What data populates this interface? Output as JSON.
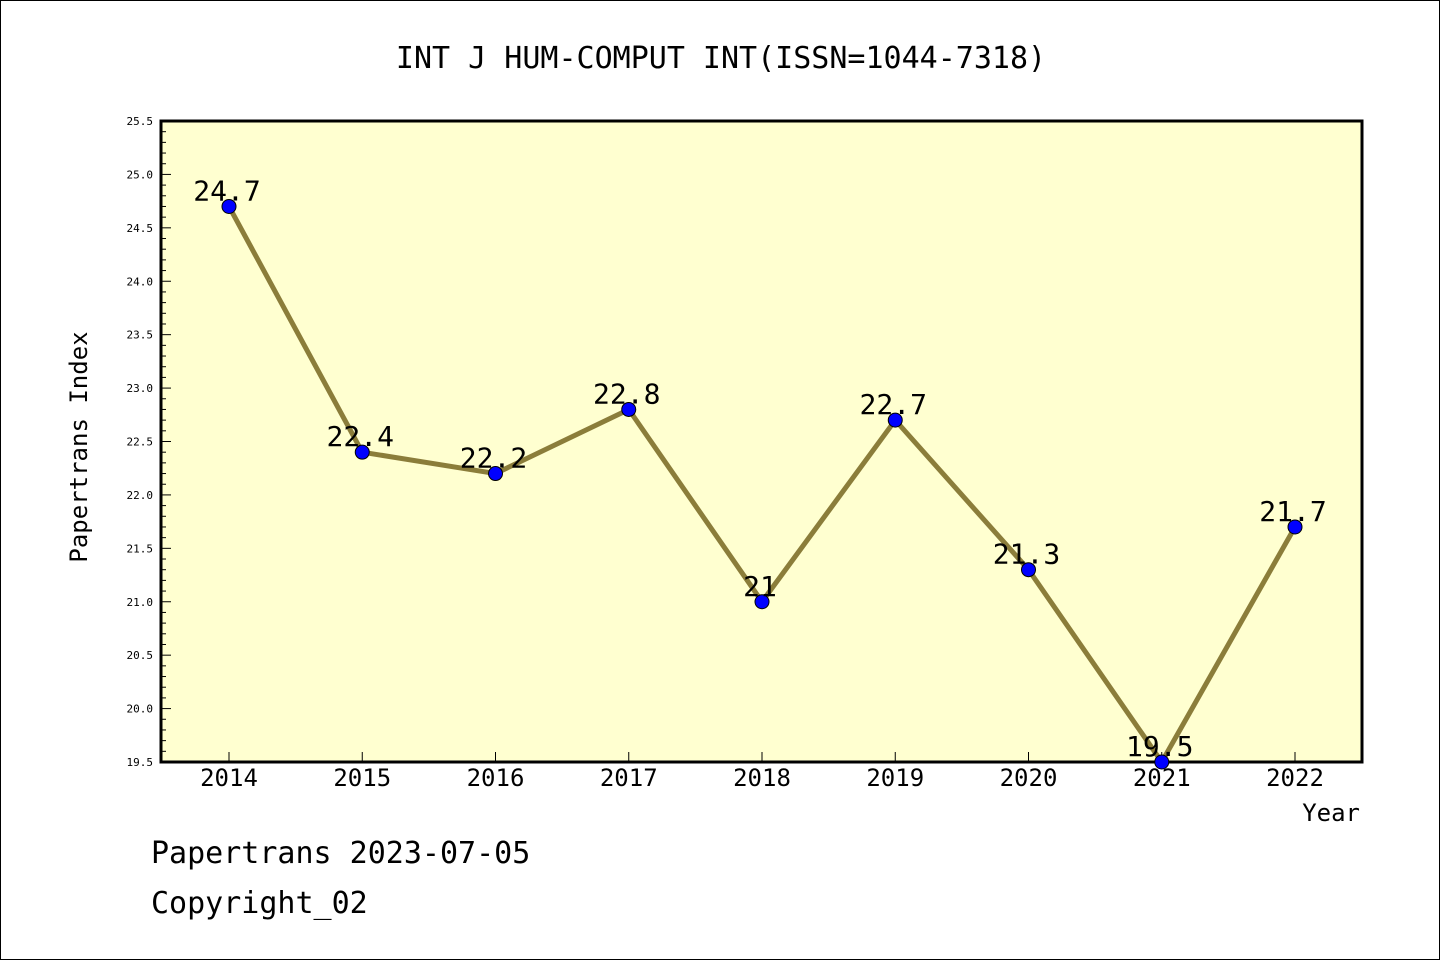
{
  "chart_data": {
    "type": "line",
    "title": "INT J HUM-COMPUT INT(ISSN=1044-7318)",
    "xlabel": "Year",
    "ylabel": "Papertrans Index",
    "categories": [
      "2014",
      "2015",
      "2016",
      "2017",
      "2018",
      "2019",
      "2020",
      "2021",
      "2022"
    ],
    "values": [
      24.7,
      22.4,
      22.2,
      22.8,
      21.0,
      22.7,
      21.3,
      19.5,
      21.7
    ],
    "data_labels": [
      "24.7",
      "22.4",
      "22.2",
      "22.8",
      "21",
      "22.7",
      "21.3",
      "19.5",
      "21.7"
    ],
    "ylim": [
      19.5,
      25.5
    ],
    "yticks": [
      "19.5",
      "20.0",
      "20.5",
      "21.0",
      "21.5",
      "22.0",
      "22.5",
      "23.0",
      "23.5",
      "24.0",
      "24.5",
      "25.0",
      "25.5"
    ],
    "grid": false,
    "colors": {
      "plot_background": "#ffffd0",
      "line": "#8b7d3a",
      "marker": "#0000ff"
    }
  },
  "footer": {
    "date_text": "Papertrans 2023-07-05",
    "copyright_text": "Copyright_02"
  }
}
